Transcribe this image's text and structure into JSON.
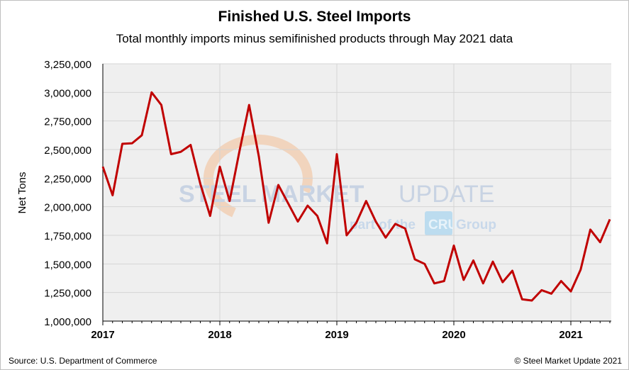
{
  "chart_data": {
    "type": "line",
    "title": "Finished U.S. Steel Imports",
    "subtitle": "Total monthly imports minus semifinished products through May 2021 data",
    "ylabel": "Net Tons",
    "xlabel": "",
    "ylim": [
      1000000,
      3250000
    ],
    "yticks": [
      "1,000,000",
      "1,250,000",
      "1,500,000",
      "1,750,000",
      "2,000,000",
      "2,250,000",
      "2,500,000",
      "2,750,000",
      "3,000,000",
      "3,250,000"
    ],
    "xticks": [
      "2017",
      "2018",
      "2019",
      "2020",
      "2021"
    ],
    "start": "2017-01",
    "grid": true,
    "line_color": "#c00000",
    "values": [
      2350000,
      2100000,
      2550000,
      2555000,
      2625000,
      3000000,
      2890000,
      2460000,
      2480000,
      2540000,
      2200000,
      1920000,
      2350000,
      2050000,
      2480000,
      2890000,
      2440000,
      1860000,
      2190000,
      2030000,
      1870000,
      2010000,
      1920000,
      1680000,
      2460000,
      1750000,
      1860000,
      2050000,
      1870000,
      1730000,
      1850000,
      1810000,
      1540000,
      1500000,
      1330000,
      1350000,
      1660000,
      1360000,
      1530000,
      1330000,
      1520000,
      1340000,
      1440000,
      1190000,
      1180000,
      1270000,
      1240000,
      1350000,
      1260000,
      1450000,
      1800000,
      1690000,
      1890000
    ]
  },
  "watermark": {
    "line1a": "STEEL",
    "line1b": "MARKET",
    "line1c": "UPDATE",
    "line2a": "part of the",
    "line2b": "CRU",
    "line2c": "Group"
  },
  "footer": {
    "source": "Source: U.S. Department of Commerce",
    "copyright": "© Steel Market Update 2021"
  }
}
